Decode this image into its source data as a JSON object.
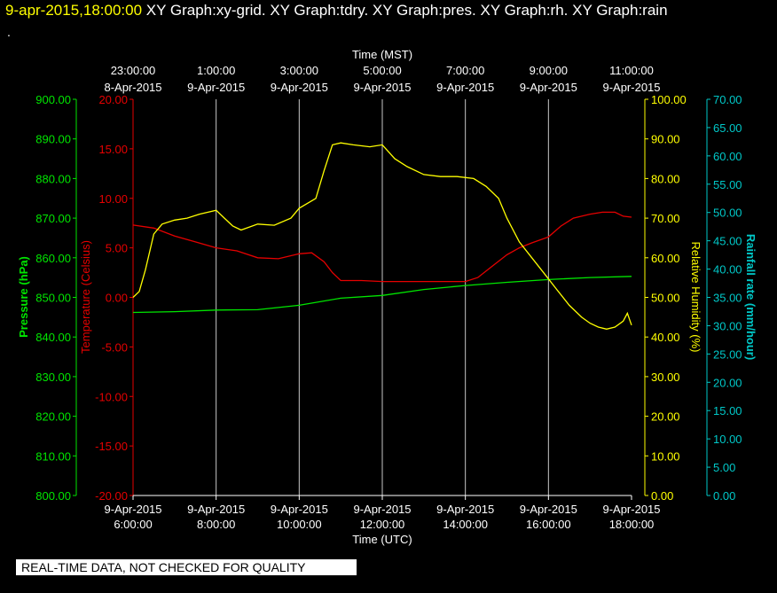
{
  "header": {
    "timestamp": "9-apr-2015,18:00:00",
    "graph_titles": "XY Graph:xy-grid.  XY Graph:tdry.  XY Graph:pres.  XY Graph:rh.  XY Graph:rain",
    "dot": "."
  },
  "footer": {
    "quality_note": "REAL-TIME DATA, NOT CHECKED FOR QUALITY"
  },
  "colors": {
    "pressure": "#00e600",
    "temperature": "#e60000",
    "humidity": "#ffff00",
    "rain": "#00c8c8",
    "grid": "#c8c8c8"
  },
  "chart_data": {
    "type": "line",
    "x_axis_bottom": {
      "label": "Time (UTC)",
      "ticks": [
        {
          "date": "9-Apr-2015",
          "time": "6:00:00"
        },
        {
          "date": "9-Apr-2015",
          "time": "8:00:00"
        },
        {
          "date": "9-Apr-2015",
          "time": "10:00:00"
        },
        {
          "date": "9-Apr-2015",
          "time": "12:00:00"
        },
        {
          "date": "9-Apr-2015",
          "time": "14:00:00"
        },
        {
          "date": "9-Apr-2015",
          "time": "16:00:00"
        },
        {
          "date": "9-Apr-2015",
          "time": "18:00:00"
        }
      ]
    },
    "x_axis_top": {
      "label": "Time (MST)",
      "ticks": [
        {
          "time": "23:00:00",
          "date": "8-Apr-2015"
        },
        {
          "time": "1:00:00",
          "date": "9-Apr-2015"
        },
        {
          "time": "3:00:00",
          "date": "9-Apr-2015"
        },
        {
          "time": "5:00:00",
          "date": "9-Apr-2015"
        },
        {
          "time": "7:00:00",
          "date": "9-Apr-2015"
        },
        {
          "time": "9:00:00",
          "date": "9-Apr-2015"
        },
        {
          "time": "11:00:00",
          "date": "9-Apr-2015"
        }
      ]
    },
    "x_range_utc_hours": [
      6,
      18
    ],
    "axes": {
      "pressure": {
        "label": "Pressure (hPa)",
        "range": [
          800,
          900
        ],
        "ticks": [
          "800.00",
          "810.00",
          "820.00",
          "830.00",
          "840.00",
          "850.00",
          "860.00",
          "870.00",
          "880.00",
          "890.00",
          "900.00"
        ]
      },
      "temperature": {
        "label": "Temperature (Celsius)",
        "range": [
          -20,
          20
        ],
        "ticks": [
          "-20.00",
          "-15.00",
          "-10.00",
          "-5.00",
          "0.00",
          "5.00",
          "10.00",
          "15.00",
          "20.00"
        ]
      },
      "humidity": {
        "label": "Relative Humidity (%)",
        "range": [
          0,
          100
        ],
        "ticks": [
          "0.00",
          "10.00",
          "20.00",
          "30.00",
          "40.00",
          "50.00",
          "60.00",
          "70.00",
          "80.00",
          "90.00",
          "100.00"
        ]
      },
      "rain": {
        "label": "Rainfall rate (mm/hour)",
        "range": [
          0,
          70
        ],
        "ticks": [
          "0.00",
          "5.00",
          "10.00",
          "15.00",
          "20.00",
          "25.00",
          "30.00",
          "35.00",
          "40.00",
          "45.00",
          "50.00",
          "55.00",
          "60.00",
          "65.00",
          "70.00"
        ]
      }
    },
    "series": [
      {
        "key": "pressure",
        "axis": "pressure",
        "x": [
          6.0,
          7.0,
          8.0,
          9.0,
          10.0,
          11.0,
          12.0,
          13.0,
          14.0,
          15.0,
          16.0,
          17.0,
          18.0
        ],
        "values": [
          846.2,
          846.4,
          846.8,
          846.9,
          848.0,
          849.8,
          850.5,
          852.0,
          853.0,
          853.8,
          854.5,
          855.0,
          855.3
        ]
      },
      {
        "key": "temperature",
        "axis": "temperature",
        "x": [
          6.0,
          6.5,
          7.0,
          7.5,
          8.0,
          8.5,
          9.0,
          9.5,
          10.0,
          10.3,
          10.6,
          10.8,
          11.0,
          11.5,
          12.0,
          12.5,
          13.0,
          13.5,
          14.0,
          14.3,
          14.6,
          15.0,
          15.3,
          15.6,
          16.0,
          16.3,
          16.6,
          17.0,
          17.3,
          17.6,
          17.8,
          18.0
        ],
        "values": [
          7.3,
          7.0,
          6.2,
          5.6,
          5.0,
          4.7,
          4.0,
          3.9,
          4.4,
          4.5,
          3.6,
          2.5,
          1.7,
          1.7,
          1.6,
          1.6,
          1.6,
          1.6,
          1.6,
          2.0,
          3.0,
          4.3,
          5.0,
          5.5,
          6.1,
          7.2,
          8.0,
          8.4,
          8.6,
          8.6,
          8.2,
          8.1
        ]
      },
      {
        "key": "humidity",
        "axis": "humidity",
        "x": [
          6.0,
          6.15,
          6.3,
          6.5,
          6.7,
          7.0,
          7.3,
          7.6,
          8.0,
          8.2,
          8.4,
          8.6,
          9.0,
          9.4,
          9.8,
          10.0,
          10.4,
          10.6,
          10.8,
          11.0,
          11.3,
          11.7,
          12.0,
          12.3,
          12.6,
          13.0,
          13.4,
          13.8,
          14.2,
          14.5,
          14.8,
          15.0,
          15.3,
          15.6,
          15.9,
          16.2,
          16.5,
          16.8,
          17.0,
          17.2,
          17.4,
          17.6,
          17.8,
          17.9,
          18.0
        ],
        "values": [
          50,
          51.5,
          57,
          66,
          68.5,
          69.5,
          70,
          71,
          72,
          70,
          68,
          67,
          68.5,
          68.2,
          70,
          72.5,
          75,
          82,
          88.5,
          89,
          88.5,
          88,
          88.5,
          85,
          83,
          81,
          80.5,
          80.5,
          80,
          78,
          75,
          70,
          64,
          60,
          56,
          52,
          48,
          45,
          43.5,
          42.5,
          42,
          42.5,
          44,
          46,
          43
        ]
      },
      {
        "key": "rain",
        "axis": "rain",
        "x": [],
        "values": []
      }
    ],
    "grid": true,
    "vertical_grid_at_ticks": true
  }
}
